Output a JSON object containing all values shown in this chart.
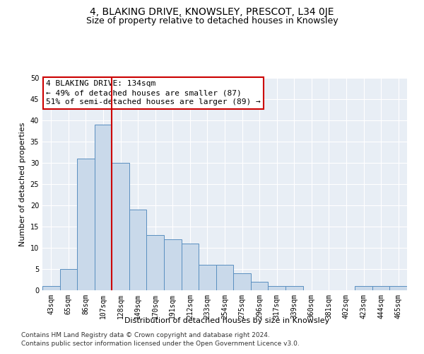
{
  "title": "4, BLAKING DRIVE, KNOWSLEY, PRESCOT, L34 0JE",
  "subtitle": "Size of property relative to detached houses in Knowsley",
  "xlabel": "Distribution of detached houses by size in Knowsley",
  "ylabel": "Number of detached properties",
  "footnote1": "Contains HM Land Registry data © Crown copyright and database right 2024.",
  "footnote2": "Contains public sector information licensed under the Open Government Licence v3.0.",
  "categories": [
    "43sqm",
    "65sqm",
    "86sqm",
    "107sqm",
    "128sqm",
    "149sqm",
    "170sqm",
    "191sqm",
    "212sqm",
    "233sqm",
    "254sqm",
    "275sqm",
    "296sqm",
    "317sqm",
    "339sqm",
    "360sqm",
    "381sqm",
    "402sqm",
    "423sqm",
    "444sqm",
    "465sqm"
  ],
  "values": [
    1,
    5,
    31,
    39,
    30,
    19,
    13,
    12,
    11,
    6,
    6,
    4,
    2,
    1,
    1,
    0,
    0,
    0,
    1,
    1,
    1
  ],
  "bar_color": "#c9d9ea",
  "bar_edge_color": "#5a8fc0",
  "annotation_line1": "4 BLAKING DRIVE: 134sqm",
  "annotation_line2": "← 49% of detached houses are smaller (87)",
  "annotation_line3": "51% of semi-detached houses are larger (89) →",
  "annotation_box_color": "#ffffff",
  "annotation_box_edge": "#cc0000",
  "vline_index": 3.5,
  "vline_color": "#cc0000",
  "ylim": [
    0,
    50
  ],
  "yticks": [
    0,
    5,
    10,
    15,
    20,
    25,
    30,
    35,
    40,
    45,
    50
  ],
  "bg_color": "#e8eef5",
  "grid_color": "#ffffff",
  "title_fontsize": 10,
  "subtitle_fontsize": 9,
  "axis_label_fontsize": 8,
  "tick_fontsize": 7,
  "annotation_fontsize": 8,
  "footnote_fontsize": 6.5
}
